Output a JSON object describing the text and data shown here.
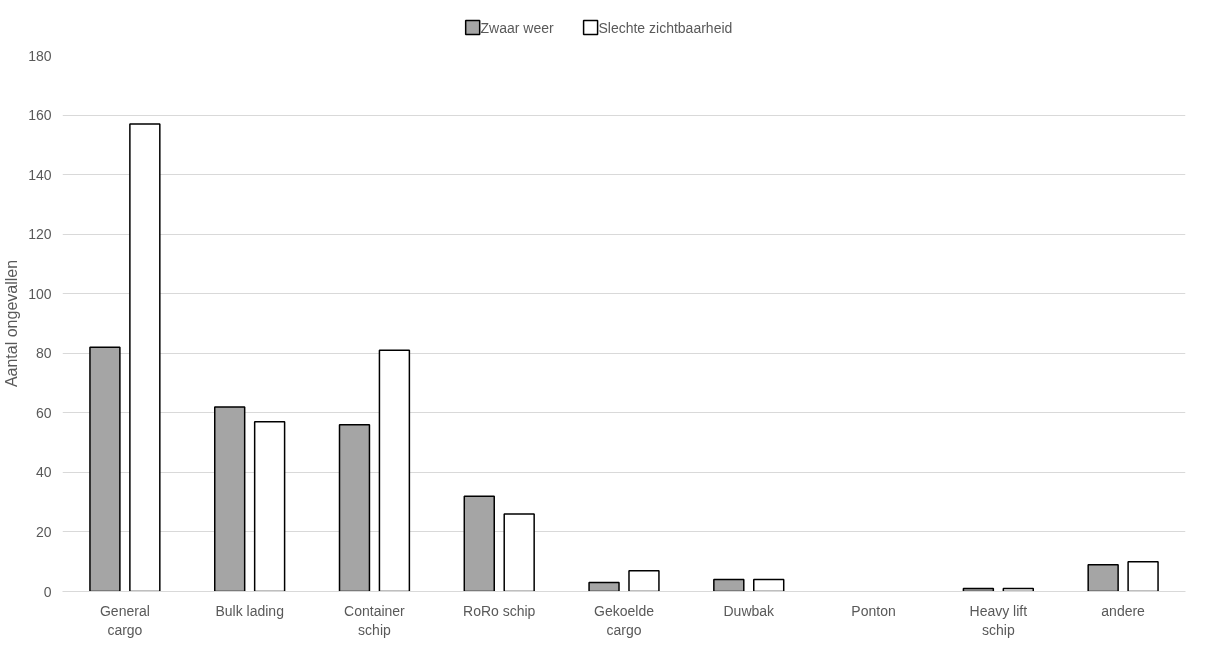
{
  "chart_data": {
    "type": "bar",
    "ylabel": "Aantal ongevallen",
    "categories": [
      "General cargo",
      "Bulk lading",
      "Container schip",
      "RoRo schip",
      "Gekoelde cargo",
      "Duwbak",
      "Ponton",
      "Heavy lift schip",
      "andere"
    ],
    "series": [
      {
        "name": "Zwaar weer",
        "color": "#a5a5a5",
        "values": [
          82,
          62,
          56,
          32,
          3,
          4,
          null,
          1,
          9
        ]
      },
      {
        "name": "Slechte zichtbaarheid",
        "color": "#ffffff",
        "values": [
          157,
          57,
          81,
          26,
          7,
          4,
          null,
          1,
          10
        ]
      }
    ],
    "ylim": [
      0,
      180
    ],
    "yticks": [
      0,
      20,
      40,
      60,
      80,
      100,
      120,
      140,
      160,
      180
    ],
    "grid": "y",
    "legend": "top"
  }
}
